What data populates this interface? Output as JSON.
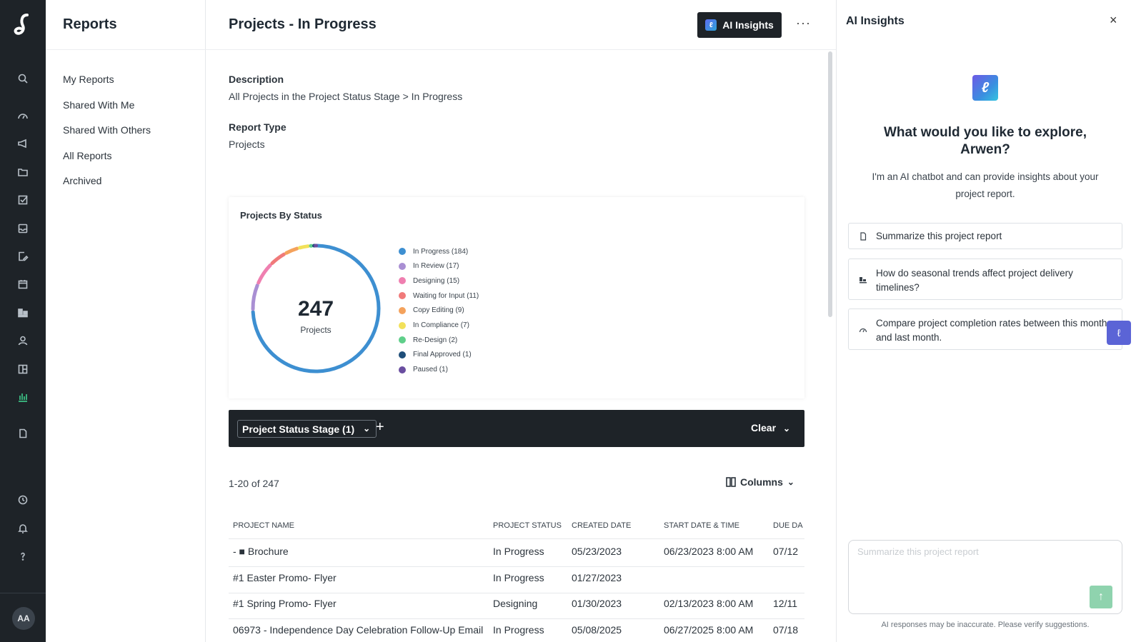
{
  "rail": {
    "logo_glyph": "ℓ",
    "avatar": "AA",
    "icons": [
      "search-icon",
      "dashboard-gauge-icon",
      "megaphone-icon",
      "folder-icon",
      "task-check-icon",
      "inbox-icon",
      "document-edit-icon",
      "calendar-icon",
      "board-icon",
      "person-icon",
      "layout-icon",
      "reports-chart-icon",
      "file-icon",
      "clock-icon",
      "bell-icon",
      "help-icon"
    ]
  },
  "sidebar": {
    "title": "Reports",
    "items": [
      {
        "label": "My Reports"
      },
      {
        "label": "Shared With Me"
      },
      {
        "label": "Shared With Others"
      },
      {
        "label": "All Reports"
      },
      {
        "label": "Archived"
      }
    ]
  },
  "header": {
    "title": "Projects - In Progress",
    "ai_button": "AI Insights",
    "more": "···"
  },
  "details": {
    "description_label": "Description",
    "description_value": "All Projects in the Project Status Stage > In Progress",
    "type_label": "Report Type",
    "type_value": "Projects"
  },
  "chart_data": {
    "type": "pie",
    "title": "Projects By Status",
    "center_value": "247",
    "center_label": "Projects",
    "labels": [
      "In Progress (184)",
      "In Review (17)",
      "Designing (15)",
      "Waiting for Input (11)",
      "Copy Editing (9)",
      "In Compliance (7)",
      "Re-Design (2)",
      "Final Approved (1)",
      "Paused (1)"
    ],
    "values": [
      184,
      17,
      15,
      11,
      9,
      7,
      2,
      1,
      1
    ],
    "colors": [
      "#3d8fd1",
      "#a98fd3",
      "#ef7fb0",
      "#f07a7a",
      "#f4a25c",
      "#f2e15a",
      "#5fcf8a",
      "#1f4e79",
      "#6a4ea0"
    ],
    "legend_position": "right"
  },
  "filters": {
    "chip": "Project Status Stage (1)",
    "add": "+",
    "clear": "Clear"
  },
  "table": {
    "count": "1-20 of 247",
    "columns_button": "Columns",
    "headers": [
      "Project Name",
      "Project Status",
      "Created Date",
      "Start Date & Time",
      "Due Da"
    ],
    "rows": [
      {
        "name": "-  ■  Brochure",
        "status": "In Progress",
        "created": "05/23/2023",
        "start": "06/23/2023 8:00 AM",
        "due": "07/12"
      },
      {
        "name": "#1 Easter Promo- Flyer",
        "status": "In Progress",
        "created": "01/27/2023",
        "start": "",
        "due": ""
      },
      {
        "name": "#1 Spring Promo- Flyer",
        "status": "Designing",
        "created": "01/30/2023",
        "start": "02/13/2023 8:00 AM",
        "due": "12/11"
      },
      {
        "name": "06973 - Independence Day Celebration Follow-Up Email",
        "status": "In Progress",
        "created": "05/08/2025",
        "start": "06/27/2025 8:00 AM",
        "due": "07/18"
      }
    ]
  },
  "ai_panel": {
    "title": "AI Insights",
    "close": "×",
    "heading": "What would you like to explore, Arwen?",
    "intro": "I'm an AI chatbot and can provide insights about your project report.",
    "suggestions": [
      {
        "text": "Summarize this project report",
        "icon": "document-icon"
      },
      {
        "text": "How do seasonal trends affect project delivery timelines?",
        "icon": "chart-icon"
      },
      {
        "text": "Compare project completion rates between this month and last month.",
        "icon": "gauge-icon"
      }
    ],
    "input_placeholder": "Summarize this project report",
    "send": "↑",
    "footer": "AI responses may be inaccurate. Please verify suggestions."
  }
}
